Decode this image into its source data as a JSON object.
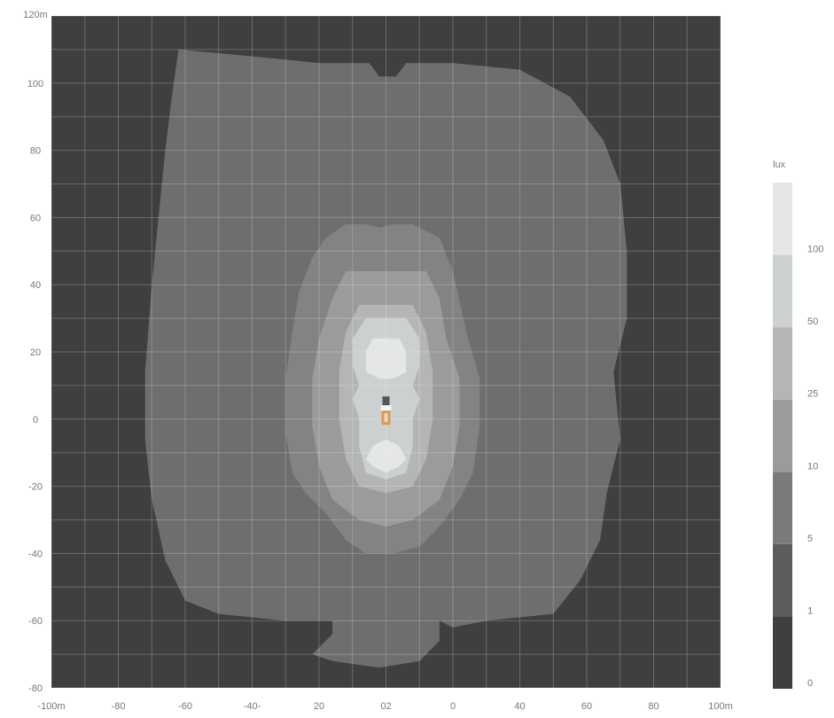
{
  "chart_data": {
    "type": "heatmap",
    "x_tick_labels": [
      "-100m",
      "-80",
      "-60",
      "-40-",
      "20",
      "02",
      "0",
      "40",
      "60",
      "80",
      "100m"
    ],
    "y_tick_labels": [
      "120m",
      "100",
      "80",
      "60",
      "40",
      "20",
      "0",
      "-20",
      "-40",
      "-60",
      "-80"
    ],
    "xlim": [
      -100,
      100
    ],
    "ylim": [
      -80,
      120
    ],
    "grid": true,
    "legend": {
      "title": "lux",
      "placement": "right",
      "levels": [
        {
          "label": "0",
          "color": "#3f3f40"
        },
        {
          "label": "1",
          "color": "#5c5c5d"
        },
        {
          "label": "5",
          "color": "#7b7b7c"
        },
        {
          "label": "10",
          "color": "#9b9b9c"
        },
        {
          "label": "25",
          "color": "#b4b5b5"
        },
        {
          "label": "50",
          "color": "#cdd0d0"
        },
        {
          "label": "100",
          "color": "#e5e6e6"
        }
      ]
    },
    "contours": [
      {
        "level": "1",
        "color": "#6e6e6f",
        "points": [
          [
            -62,
            110
          ],
          [
            -40,
            108
          ],
          [
            -20,
            106
          ],
          [
            -5,
            106
          ],
          [
            -2,
            102
          ],
          [
            3,
            102
          ],
          [
            6,
            106
          ],
          [
            20,
            106
          ],
          [
            40,
            104
          ],
          [
            55,
            96
          ],
          [
            65,
            83
          ],
          [
            70,
            70
          ],
          [
            72,
            50
          ],
          [
            72,
            30
          ],
          [
            68,
            14
          ],
          [
            70,
            -6
          ],
          [
            66,
            -22
          ],
          [
            64,
            -36
          ],
          [
            58,
            -48
          ],
          [
            50,
            -58
          ],
          [
            30,
            -60
          ],
          [
            20,
            -62
          ],
          [
            16,
            -60
          ],
          [
            16,
            -66
          ],
          [
            10,
            -72
          ],
          [
            -2,
            -74
          ],
          [
            -16,
            -72
          ],
          [
            -22,
            -70
          ],
          [
            -16,
            -64
          ],
          [
            -16,
            -60
          ],
          [
            -30,
            -60
          ],
          [
            -50,
            -58
          ],
          [
            -60,
            -54
          ],
          [
            -66,
            -42
          ],
          [
            -70,
            -24
          ],
          [
            -72,
            -6
          ],
          [
            -72,
            14
          ],
          [
            -70,
            40
          ],
          [
            -68,
            60
          ],
          [
            -66,
            80
          ],
          [
            -64,
            96
          ]
        ]
      },
      {
        "level": "5",
        "color": "#838384",
        "points": [
          [
            -12,
            58
          ],
          [
            -6,
            58
          ],
          [
            -2,
            57
          ],
          [
            2,
            58
          ],
          [
            8,
            58
          ],
          [
            16,
            54
          ],
          [
            20,
            44
          ],
          [
            24,
            26
          ],
          [
            28,
            12
          ],
          [
            28,
            -2
          ],
          [
            26,
            -16
          ],
          [
            22,
            -24
          ],
          [
            16,
            -32
          ],
          [
            10,
            -38
          ],
          [
            2,
            -40
          ],
          [
            -6,
            -40
          ],
          [
            -12,
            -36
          ],
          [
            -18,
            -28
          ],
          [
            -24,
            -22
          ],
          [
            -28,
            -16
          ],
          [
            -30,
            -4
          ],
          [
            -30,
            12
          ],
          [
            -28,
            26
          ],
          [
            -26,
            38
          ],
          [
            -22,
            48
          ],
          [
            -18,
            54
          ]
        ]
      },
      {
        "level": "10",
        "color": "#9b9b9c",
        "points": [
          [
            -12,
            44
          ],
          [
            -4,
            44
          ],
          [
            4,
            44
          ],
          [
            12,
            44
          ],
          [
            16,
            36
          ],
          [
            18,
            24
          ],
          [
            22,
            12
          ],
          [
            22,
            -2
          ],
          [
            20,
            -14
          ],
          [
            16,
            -24
          ],
          [
            8,
            -30
          ],
          [
            0,
            -32
          ],
          [
            -8,
            -30
          ],
          [
            -16,
            -24
          ],
          [
            -20,
            -14
          ],
          [
            -22,
            -2
          ],
          [
            -22,
            12
          ],
          [
            -20,
            24
          ],
          [
            -16,
            36
          ]
        ]
      },
      {
        "level": "25",
        "color": "#b4b5b5",
        "points": [
          [
            -8,
            34
          ],
          [
            0,
            34
          ],
          [
            8,
            34
          ],
          [
            12,
            26
          ],
          [
            14,
            14
          ],
          [
            14,
            0
          ],
          [
            12,
            -12
          ],
          [
            8,
            -20
          ],
          [
            0,
            -22
          ],
          [
            -8,
            -20
          ],
          [
            -12,
            -12
          ],
          [
            -14,
            0
          ],
          [
            -14,
            14
          ],
          [
            -12,
            26
          ]
        ]
      },
      {
        "level": "50",
        "color": "#cdd0d0",
        "points": [
          [
            -6,
            30
          ],
          [
            0,
            30
          ],
          [
            6,
            30
          ],
          [
            10,
            24
          ],
          [
            10,
            16
          ],
          [
            8,
            10
          ],
          [
            10,
            6
          ],
          [
            8,
            0
          ],
          [
            8,
            -8
          ],
          [
            6,
            -16
          ],
          [
            0,
            -18
          ],
          [
            -6,
            -16
          ],
          [
            -8,
            -8
          ],
          [
            -8,
            0
          ],
          [
            -10,
            6
          ],
          [
            -8,
            10
          ],
          [
            -10,
            16
          ],
          [
            -10,
            24
          ]
        ]
      },
      {
        "level": "100",
        "color": "#e5e6e6",
        "points": [
          [
            -4,
            24
          ],
          [
            0,
            24
          ],
          [
            4,
            24
          ],
          [
            6,
            20
          ],
          [
            6,
            14
          ],
          [
            2,
            12
          ],
          [
            -2,
            12
          ],
          [
            -6,
            14
          ],
          [
            -6,
            20
          ]
        ]
      },
      {
        "level": "100",
        "color": "#e5e6e6",
        "points": [
          [
            -4,
            -8
          ],
          [
            0,
            -6
          ],
          [
            4,
            -8
          ],
          [
            6,
            -12
          ],
          [
            4,
            -14
          ],
          [
            0,
            -16
          ],
          [
            -4,
            -14
          ],
          [
            -6,
            -12
          ]
        ]
      }
    ],
    "source_marker": {
      "x": 0,
      "y": 2,
      "color": "#d79a5b"
    }
  }
}
